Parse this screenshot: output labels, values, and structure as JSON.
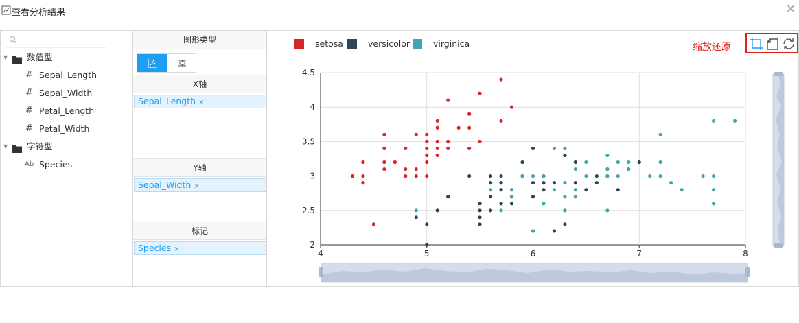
{
  "dialog": {
    "title": "查看分析结果"
  },
  "tree": {
    "groups": [
      {
        "label": "数值型",
        "fields": [
          "Sepal_Length",
          "Sepal_Width",
          "Petal_Length",
          "Petal_Width"
        ]
      },
      {
        "label": "字符型",
        "fields": [
          "Species"
        ]
      }
    ]
  },
  "config": {
    "chart_type_header": "图形类型",
    "x_header": "X轴",
    "x_field": "Sepal_Length",
    "y_header": "Y轴",
    "y_field": "Sepal_Width",
    "mark_header": "标记",
    "mark_field": "Species",
    "remove_glyph": "×"
  },
  "toolbar": {
    "zoom_label": "缩放还原"
  },
  "colors": {
    "setosa": "#d62728",
    "versicolor": "#2f4554",
    "virginica": "#3fa7b0",
    "accent": "#1e9ff2",
    "highlight": "#e02020"
  },
  "chart_data": {
    "type": "scatter",
    "xlim": [
      4,
      8
    ],
    "ylim": [
      2,
      4.5
    ],
    "x_ticks": [
      "4",
      "5",
      "6",
      "7",
      "8"
    ],
    "y_ticks": [
      "2",
      "2.5",
      "3",
      "3.5",
      "4",
      "4.5"
    ],
    "grid": true,
    "legend_position": "top-left",
    "series": [
      {
        "name": "setosa",
        "points": [
          [
            4.3,
            3.0
          ],
          [
            4.4,
            3.2
          ],
          [
            4.4,
            3.0
          ],
          [
            4.4,
            2.9
          ],
          [
            4.5,
            2.3
          ],
          [
            4.6,
            3.6
          ],
          [
            4.6,
            3.4
          ],
          [
            4.6,
            3.2
          ],
          [
            4.6,
            3.1
          ],
          [
            4.7,
            3.2
          ],
          [
            4.7,
            3.2
          ],
          [
            4.8,
            3.4
          ],
          [
            4.8,
            3.1
          ],
          [
            4.8,
            3.0
          ],
          [
            4.9,
            3.6
          ],
          [
            4.9,
            3.1
          ],
          [
            4.9,
            3.0
          ],
          [
            5.0,
            3.6
          ],
          [
            5.0,
            3.5
          ],
          [
            5.0,
            3.4
          ],
          [
            5.0,
            3.3
          ],
          [
            5.0,
            3.2
          ],
          [
            5.0,
            3.0
          ],
          [
            5.1,
            3.8
          ],
          [
            5.1,
            3.7
          ],
          [
            5.1,
            3.5
          ],
          [
            5.1,
            3.4
          ],
          [
            5.1,
            3.3
          ],
          [
            5.2,
            4.1
          ],
          [
            5.2,
            3.5
          ],
          [
            5.2,
            3.4
          ],
          [
            5.3,
            3.7
          ],
          [
            5.4,
            3.9
          ],
          [
            5.4,
            3.7
          ],
          [
            5.4,
            3.4
          ],
          [
            5.5,
            4.2
          ],
          [
            5.5,
            3.5
          ],
          [
            5.7,
            4.4
          ],
          [
            5.7,
            3.8
          ],
          [
            5.8,
            4.0
          ]
        ]
      },
      {
        "name": "versicolor",
        "points": [
          [
            4.9,
            2.4
          ],
          [
            5.0,
            2.3
          ],
          [
            5.0,
            2.0
          ],
          [
            5.1,
            2.5
          ],
          [
            5.2,
            2.7
          ],
          [
            5.4,
            3.0
          ],
          [
            5.5,
            2.6
          ],
          [
            5.5,
            2.5
          ],
          [
            5.5,
            2.4
          ],
          [
            5.5,
            2.3
          ],
          [
            5.6,
            3.0
          ],
          [
            5.6,
            2.9
          ],
          [
            5.6,
            2.7
          ],
          [
            5.6,
            2.5
          ],
          [
            5.7,
            3.0
          ],
          [
            5.7,
            2.9
          ],
          [
            5.7,
            2.8
          ],
          [
            5.7,
            2.6
          ],
          [
            5.8,
            2.7
          ],
          [
            5.8,
            2.6
          ],
          [
            5.9,
            3.2
          ],
          [
            5.9,
            3.0
          ],
          [
            6.0,
            3.4
          ],
          [
            6.0,
            2.9
          ],
          [
            6.0,
            2.7
          ],
          [
            6.0,
            2.2
          ],
          [
            6.1,
            3.0
          ],
          [
            6.1,
            2.9
          ],
          [
            6.1,
            2.8
          ],
          [
            6.2,
            2.9
          ],
          [
            6.2,
            2.2
          ],
          [
            6.3,
            3.3
          ],
          [
            6.3,
            2.5
          ],
          [
            6.3,
            2.3
          ],
          [
            6.4,
            3.2
          ],
          [
            6.4,
            2.9
          ],
          [
            6.5,
            2.8
          ],
          [
            6.6,
            3.0
          ],
          [
            6.6,
            2.9
          ],
          [
            6.7,
            3.1
          ],
          [
            6.7,
            3.0
          ],
          [
            6.8,
            2.8
          ],
          [
            6.9,
            3.1
          ],
          [
            7.0,
            3.2
          ]
        ]
      },
      {
        "name": "virginica",
        "points": [
          [
            4.9,
            2.5
          ],
          [
            5.6,
            2.8
          ],
          [
            5.7,
            2.5
          ],
          [
            5.8,
            2.8
          ],
          [
            5.8,
            2.7
          ],
          [
            5.9,
            3.0
          ],
          [
            6.0,
            3.0
          ],
          [
            6.0,
            2.2
          ],
          [
            6.1,
            3.0
          ],
          [
            6.1,
            2.6
          ],
          [
            6.2,
            3.4
          ],
          [
            6.2,
            2.8
          ],
          [
            6.3,
            3.4
          ],
          [
            6.3,
            2.9
          ],
          [
            6.3,
            2.7
          ],
          [
            6.3,
            2.5
          ],
          [
            6.4,
            3.1
          ],
          [
            6.4,
            2.8
          ],
          [
            6.4,
            2.7
          ],
          [
            6.5,
            3.2
          ],
          [
            6.5,
            3.0
          ],
          [
            6.7,
            3.3
          ],
          [
            6.7,
            3.1
          ],
          [
            6.7,
            3.0
          ],
          [
            6.7,
            2.5
          ],
          [
            6.8,
            3.2
          ],
          [
            6.8,
            3.0
          ],
          [
            6.9,
            3.2
          ],
          [
            6.9,
            3.1
          ],
          [
            7.1,
            3.0
          ],
          [
            7.2,
            3.6
          ],
          [
            7.2,
            3.2
          ],
          [
            7.2,
            3.0
          ],
          [
            7.3,
            2.9
          ],
          [
            7.4,
            2.8
          ],
          [
            7.6,
            3.0
          ],
          [
            7.7,
            3.8
          ],
          [
            7.7,
            3.0
          ],
          [
            7.7,
            2.8
          ],
          [
            7.7,
            2.6
          ],
          [
            7.9,
            3.8
          ]
        ]
      }
    ]
  }
}
